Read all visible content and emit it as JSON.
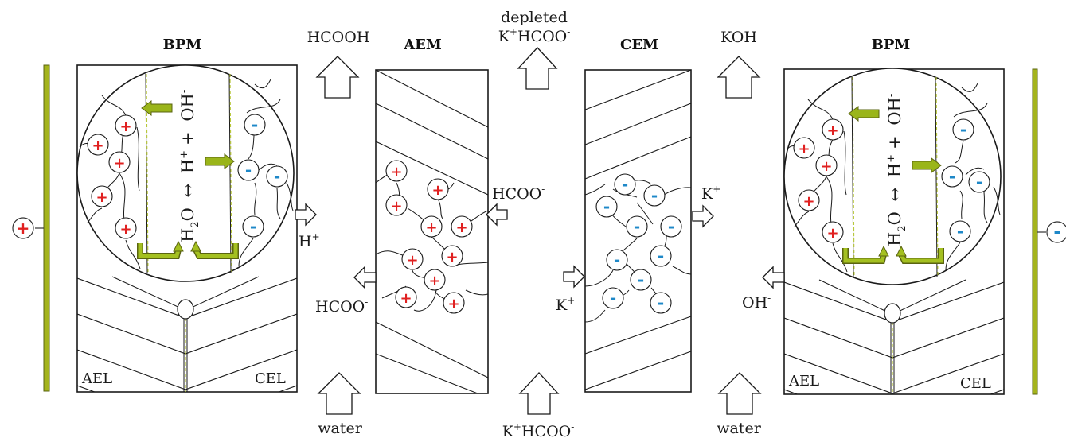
{
  "membranes": {
    "bpm_left": "BPM",
    "aem": "AEM",
    "cem": "CEM",
    "bpm_right": "BPM"
  },
  "layers": {
    "ael": "AEL",
    "cel": "CEL"
  },
  "reaction": {
    "reactant": "H",
    "reactant_sub": "2",
    "reactant_end": "O",
    "arrow": "↔",
    "proton": "H",
    "proton_sup": "+",
    "plus": "+",
    "hydroxide": "OH",
    "hydroxide_sup": "-"
  },
  "streams": {
    "hcooh": "HCOOH",
    "depleted_line1": "depleted",
    "depleted_line2": "K",
    "depleted_sup": "+",
    "depleted_tail": "HCOO",
    "depleted_tail_sup": "-",
    "koh": "KOH",
    "water_left": "water",
    "feed": "K",
    "feed_sup": "+",
    "feed_tail": "HCOO",
    "feed_tail_sup": "-",
    "water_right": "water"
  },
  "ions": {
    "h_plus": "H",
    "h_plus_sup": "+",
    "hcoo_left": "HCOO",
    "hcoo_left_sup": "-",
    "hcoo_aem": "HCOO",
    "hcoo_aem_sup": "-",
    "k_cem_out": "K",
    "k_cem_out_sup": "+",
    "k_cem_in": "K",
    "k_cem_in_sup": "+",
    "oh_minus": "OH",
    "oh_minus_sup": "-"
  },
  "charges": {
    "positive": "+",
    "negative": "-"
  },
  "colors": {
    "electrode": "#a4b41c",
    "positive": "#e02020",
    "negative": "#1e88c8",
    "arrow_green": "#9ab51a",
    "outline": "#1a1a1a"
  }
}
